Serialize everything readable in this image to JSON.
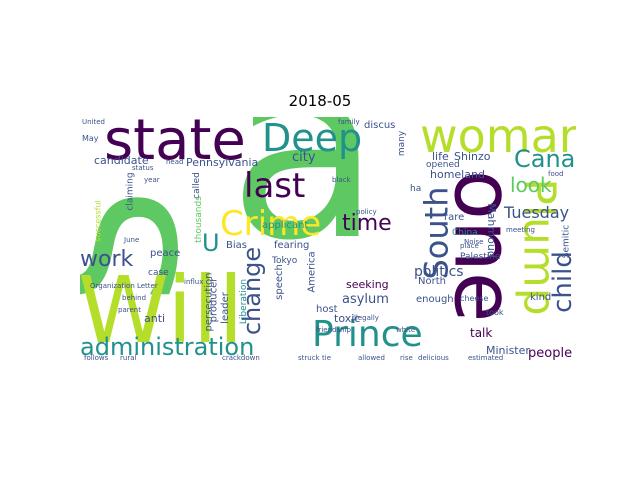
{
  "title": "2018-05",
  "palette": {
    "purple": "#440154",
    "blue": "#3b528b",
    "teal": "#21918c",
    "green": "#5ec962",
    "yellow": "#fde725",
    "lime": "#b5de2b"
  },
  "words": {
    "a_hat": "â",
    "will": "Will",
    "s": "S",
    "state": "state",
    "woman": "woman",
    "one": "one",
    "deep": "Deep",
    "plump": "Plump",
    "prince": "Prince",
    "administration": "administration",
    "crime": "Crime",
    "last": "last",
    "south": "South",
    "canada": "Canada",
    "child": "child",
    "work": "work",
    "change": "change",
    "time": "time",
    "look": "look",
    "u": "U",
    "tuesday": "Tuesday",
    "politics": "politics",
    "people": "people",
    "city": "city",
    "pennsylvania": "Pennsylvania",
    "candidate": "candidate",
    "asylum": "asylum",
    "seeking": "seeking",
    "toxic": "toxic",
    "talk": "talk",
    "homeland": "homeland",
    "life": "life",
    "shinzo": "Shinzo",
    "mahmoud": "Mahmoud",
    "north": "North",
    "minister": "Minister",
    "palestine": "Palestine",
    "enough": "enough",
    "kind": "kind",
    "rare": "rare",
    "china": "China",
    "semitic": "Semitic",
    "anti": "anti",
    "producer": "producer",
    "persecution": "persecution",
    "leader": "leader",
    "liberation": "Liberation",
    "speech": "speech",
    "america": "America",
    "host": "host",
    "bias": "Bias",
    "fearing": "fearing",
    "applicant": "applicant",
    "called": "called",
    "thousands": "thousands",
    "claiming": "claiming",
    "successful": "successful",
    "peace": "peace",
    "case": "case",
    "tokyo": "Tokyo",
    "discus": "discus",
    "many": "many",
    "ha": "ha",
    "opened": "opened",
    "cheese": "cheese",
    "took": "took",
    "may": "May",
    "united": "United",
    "organization_letter": "Organization Letter",
    "follows": "follows",
    "rural": "rural",
    "crackdown": "crackdown",
    "struck": "struck",
    "tie": "tie",
    "allowed": "allowed",
    "rise": "rise",
    "delicious": "delicious",
    "estimated": "estimated",
    "behind": "behind",
    "parent": "parent",
    "june": "June",
    "status": "status",
    "year": "year",
    "head": "head",
    "influx": "influx",
    "policy": "policy",
    "black": "black",
    "white": "white",
    "meeting": "meeting",
    "place": "place",
    "food": "food",
    "friendship": "friendship",
    "illegally": "illegally",
    "family": "family",
    "noise": "Noise"
  }
}
